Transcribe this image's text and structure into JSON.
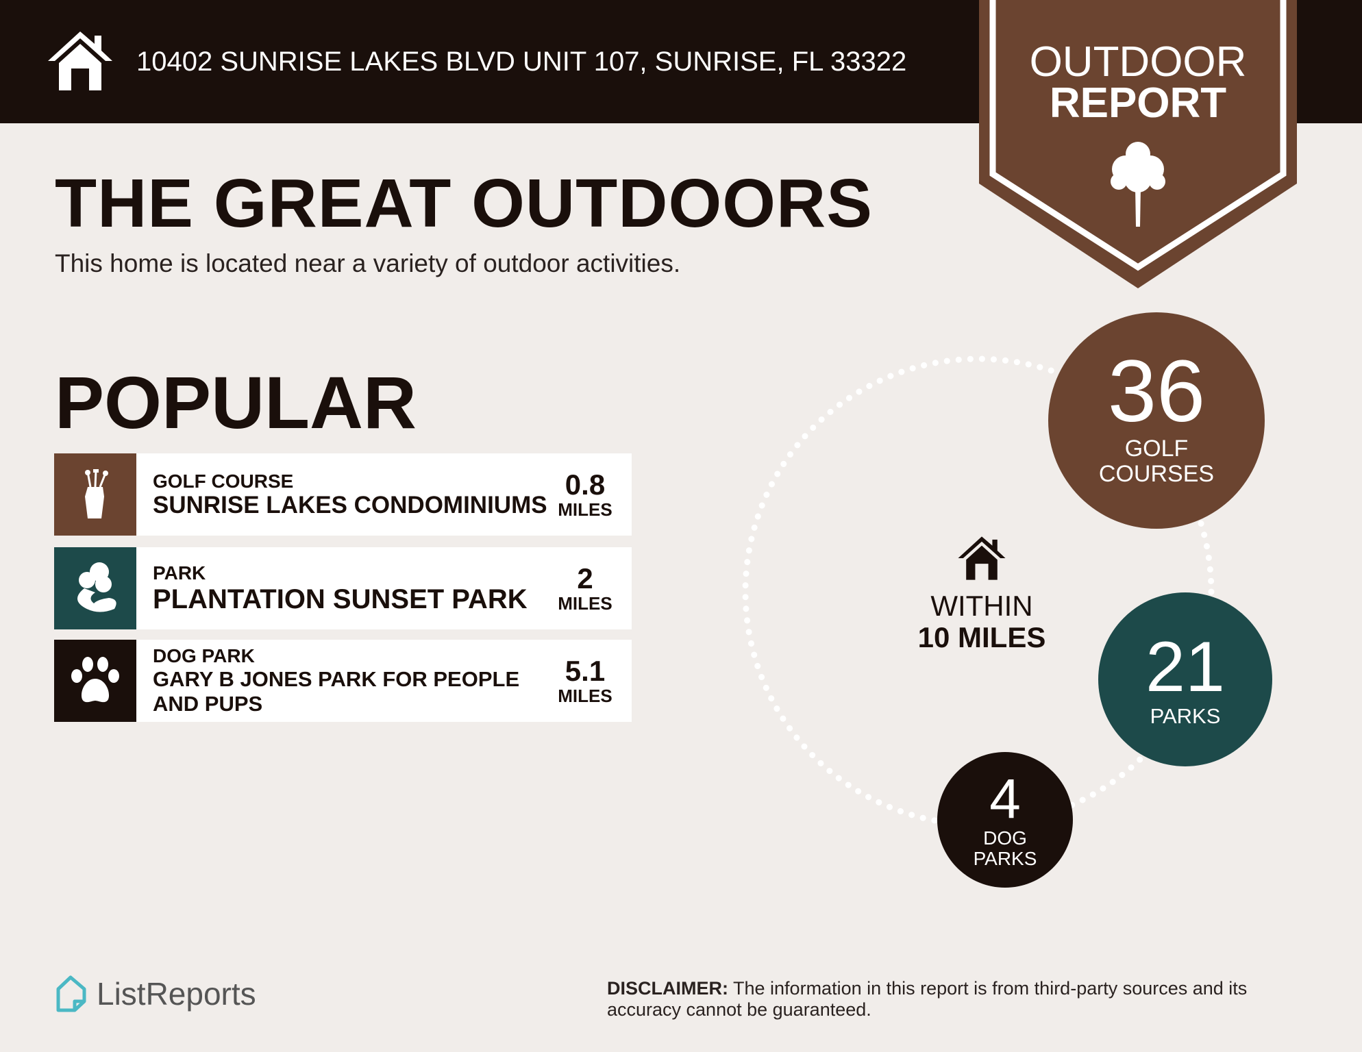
{
  "header": {
    "address": "10402 SUNRISE LAKES BLVD UNIT 107, SUNRISE, FL 33322",
    "icon": "house-icon"
  },
  "badge": {
    "line1": "OUTDOOR",
    "line2": "REPORT",
    "icon": "tree-icon",
    "color": "#6b4430"
  },
  "title": "THE GREAT OUTDOORS",
  "subtitle": "This home is located near a variety of outdoor activities.",
  "popular": {
    "heading": "POPULAR",
    "items": [
      {
        "category": "GOLF COURSE",
        "name": "SUNRISE LAKES CONDOMINIUMS",
        "distance": "0.8",
        "unit": "MILES",
        "icon": "golf-bag-icon",
        "color": "#6b4430"
      },
      {
        "category": "PARK",
        "name": "PLANTATION SUNSET PARK",
        "distance": "2",
        "unit": "MILES",
        "icon": "park-trees-icon",
        "color": "#1d4a4a"
      },
      {
        "category": "DOG PARK",
        "name": "GARY B JONES PARK FOR PEOPLE AND PUPS",
        "distance": "5.1",
        "unit": "MILES",
        "icon": "paw-icon",
        "color": "#1a0f0b"
      }
    ]
  },
  "radius": {
    "line1": "WITHIN",
    "line2": "10 MILES"
  },
  "stats": [
    {
      "count": "36",
      "line1": "GOLF",
      "line2": "COURSES",
      "color": "#6b4430"
    },
    {
      "count": "21",
      "line1": "PARKS",
      "line2": "",
      "color": "#1d4a4a"
    },
    {
      "count": "4",
      "line1": "DOG",
      "line2": "PARKS",
      "color": "#1a0f0b"
    }
  ],
  "footer": {
    "logo": "ListReports",
    "disclaimer_label": "DISCLAIMER:",
    "disclaimer_text": " The information in this report is from third-party sources and its accuracy cannot be guaranteed."
  }
}
